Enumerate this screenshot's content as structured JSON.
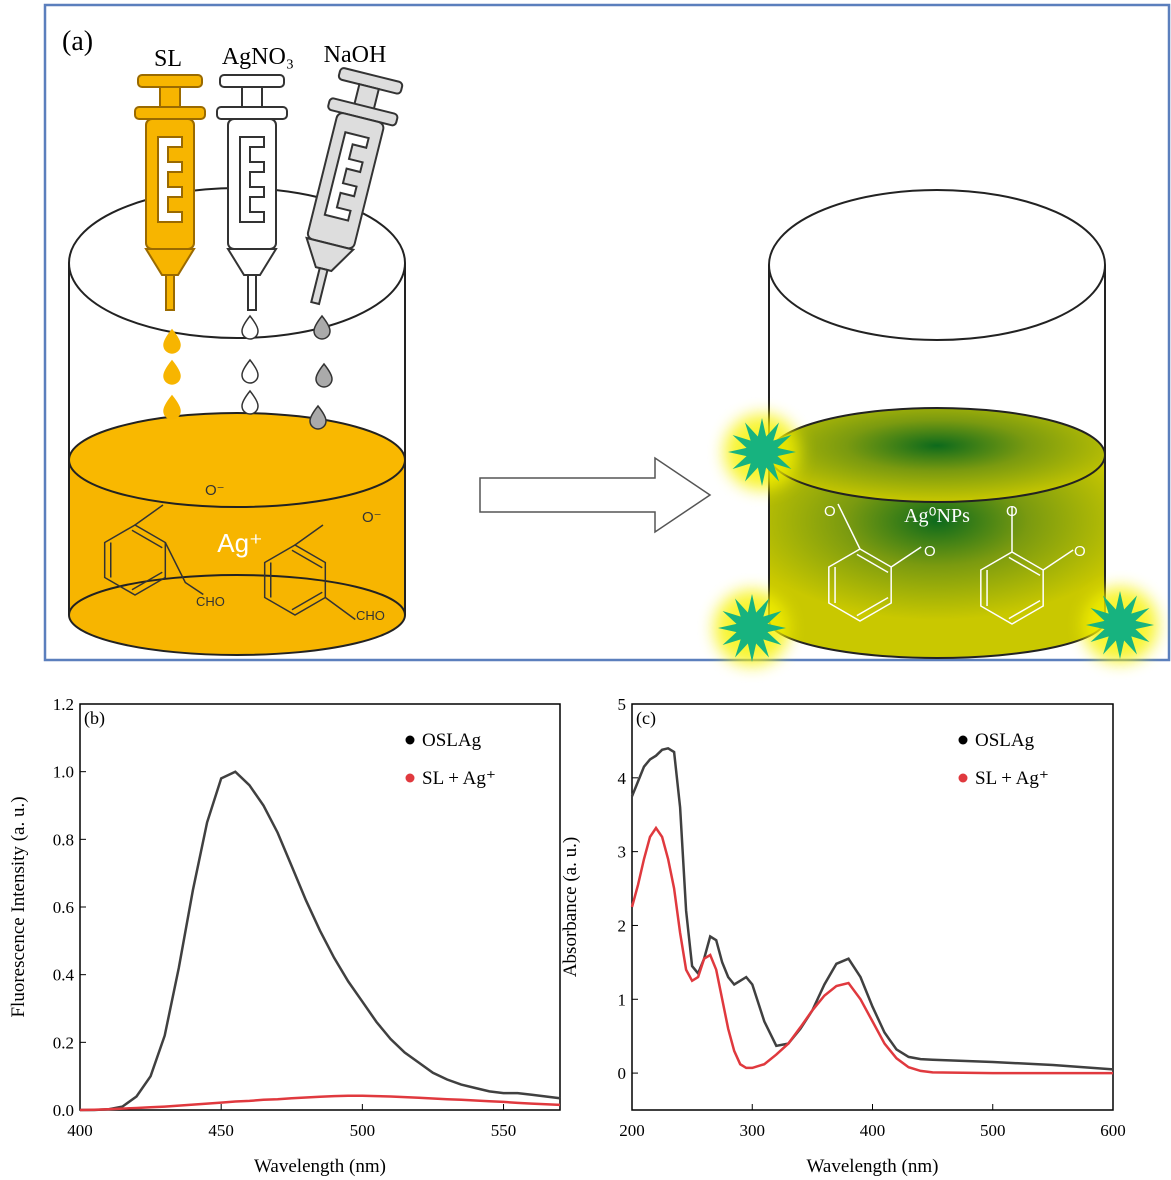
{
  "diagram": {
    "panel_label": "(a)",
    "reagents": [
      "SL",
      "AgNO₃",
      "NaOH"
    ],
    "ion_label": "Ag⁺",
    "product_label": "Ag⁰NPs",
    "reactant_groups": [
      {
        "anion": "O⁻",
        "aldehyde": "CHO"
      },
      {
        "anion": "O⁻",
        "aldehyde": "CHO"
      }
    ],
    "product_oxygens": [
      "O",
      "O",
      "O",
      "O"
    ]
  },
  "chart_data": [
    {
      "type": "line",
      "panel_label": "(b)",
      "x_label": "Wavelength (nm)",
      "y_label": "Fluorescence Intensity (a. u.)",
      "x": [
        400,
        405,
        410,
        415,
        420,
        425,
        430,
        435,
        440,
        445,
        450,
        455,
        460,
        465,
        470,
        475,
        480,
        485,
        490,
        495,
        500,
        505,
        510,
        515,
        520,
        525,
        530,
        535,
        540,
        545,
        550,
        555,
        560,
        565,
        570
      ],
      "series": [
        {
          "name": "OSLAg",
          "color": "#404040",
          "values": [
            0,
            0,
            0.002,
            0.01,
            0.04,
            0.1,
            0.22,
            0.42,
            0.65,
            0.85,
            0.98,
            1.0,
            0.96,
            0.9,
            0.82,
            0.72,
            0.62,
            0.53,
            0.45,
            0.38,
            0.32,
            0.26,
            0.21,
            0.17,
            0.14,
            0.11,
            0.09,
            0.075,
            0.065,
            0.055,
            0.05,
            0.05,
            0.045,
            0.04,
            0.035
          ]
        },
        {
          "name": "SL + Ag⁺",
          "color": "#e0393e",
          "values": [
            0,
            0.001,
            0.002,
            0.004,
            0.006,
            0.008,
            0.01,
            0.013,
            0.016,
            0.019,
            0.022,
            0.025,
            0.027,
            0.03,
            0.032,
            0.035,
            0.037,
            0.039,
            0.041,
            0.042,
            0.042,
            0.041,
            0.04,
            0.038,
            0.036,
            0.034,
            0.032,
            0.03,
            0.028,
            0.026,
            0.024,
            0.021,
            0.019,
            0.017,
            0.015
          ]
        }
      ],
      "xlim": [
        400,
        570
      ],
      "xticks": [
        400,
        450,
        500,
        550
      ],
      "ylim": [
        0,
        1.2
      ],
      "yticks": [
        {
          "value": 0,
          "label": "0.0"
        },
        0.2,
        0.4,
        0.6,
        0.8,
        {
          "value": 1,
          "label": "1.0"
        },
        1.2
      ],
      "grid": false,
      "legend": "upper right"
    },
    {
      "type": "line",
      "panel_label": "(c)",
      "x_label": "Wavelength (nm)",
      "y_label": "Absorbance (a. u.)",
      "x": [
        200,
        205,
        210,
        215,
        220,
        225,
        230,
        235,
        240,
        245,
        250,
        255,
        260,
        265,
        270,
        275,
        280,
        285,
        290,
        295,
        300,
        310,
        320,
        330,
        340,
        350,
        360,
        370,
        380,
        390,
        400,
        410,
        420,
        430,
        440,
        450,
        500,
        550,
        600
      ],
      "series": [
        {
          "name": "OSLAg",
          "color": "#404040",
          "values": [
            3.75,
            3.95,
            4.15,
            4.25,
            4.3,
            4.38,
            4.4,
            4.35,
            3.6,
            2.2,
            1.45,
            1.35,
            1.55,
            1.85,
            1.8,
            1.5,
            1.3,
            1.2,
            1.25,
            1.3,
            1.2,
            0.7,
            0.37,
            0.4,
            0.6,
            0.85,
            1.2,
            1.48,
            1.55,
            1.3,
            0.9,
            0.55,
            0.32,
            0.22,
            0.19,
            0.18,
            0.15,
            0.11,
            0.05
          ]
        },
        {
          "name": "SL + Ag⁺",
          "color": "#e0393e",
          "values": [
            2.25,
            2.55,
            2.9,
            3.2,
            3.32,
            3.2,
            2.9,
            2.5,
            1.9,
            1.4,
            1.25,
            1.3,
            1.55,
            1.6,
            1.4,
            1.0,
            0.6,
            0.3,
            0.12,
            0.07,
            0.07,
            0.12,
            0.25,
            0.4,
            0.62,
            0.85,
            1.05,
            1.18,
            1.22,
            1.0,
            0.7,
            0.4,
            0.2,
            0.08,
            0.03,
            0.01,
            0,
            0,
            0
          ]
        }
      ],
      "xlim": [
        200,
        600
      ],
      "xticks": [
        200,
        300,
        400,
        500,
        600
      ],
      "ylim": [
        -0.5,
        5
      ],
      "yticks": [
        0,
        1,
        2,
        3,
        4,
        5
      ],
      "grid": false,
      "legend": "upper right"
    }
  ]
}
